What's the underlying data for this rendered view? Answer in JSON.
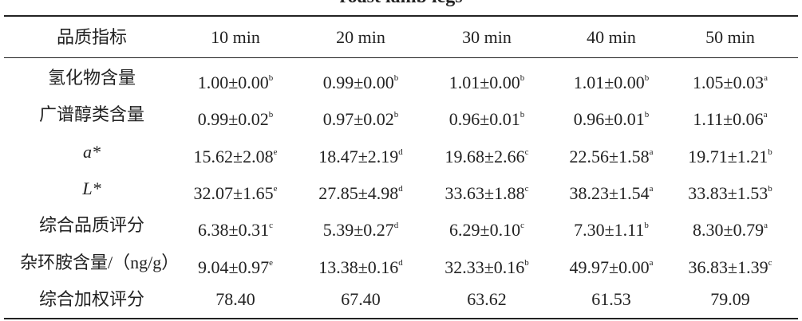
{
  "header": {
    "title": "roast lamb legs"
  },
  "table": {
    "columns": [
      "品质指标",
      "10 min",
      "20 min",
      "30 min",
      "40 min",
      "50 min"
    ],
    "rows": [
      [
        "氢化物含量",
        {
          "value": "1.00±0.00",
          "sup": "b"
        },
        {
          "value": "0.99±0.00",
          "sup": "b"
        },
        {
          "value": "1.01±0.00",
          "sup": "b"
        },
        {
          "value": "1.01±0.00",
          "sup": "b"
        },
        {
          "value": "1.05±0.03",
          "sup": "a"
        }
      ],
      [
        "广谱醇类含量",
        {
          "value": "0.99±0.02",
          "sup": "b"
        },
        {
          "value": "0.97±0.02",
          "sup": "b"
        },
        {
          "value": "0.96±0.01",
          "sup": "b"
        },
        {
          "value": "0.96±0.01",
          "sup": "b"
        },
        {
          "value": "1.11±0.06",
          "sup": "a"
        }
      ],
      [
        "a*",
        {
          "value": "15.62±2.08",
          "sup": "e"
        },
        {
          "value": "18.47±2.19",
          "sup": "d"
        },
        {
          "value": "19.68±2.66",
          "sup": "c"
        },
        {
          "value": "22.56±1.58",
          "sup": "a"
        },
        {
          "value": "19.71±1.21",
          "sup": "b"
        }
      ],
      [
        "L*",
        {
          "value": "32.07±1.65",
          "sup": "e"
        },
        {
          "value": "27.85±4.98",
          "sup": "d"
        },
        {
          "value": "33.63±1.88",
          "sup": "c"
        },
        {
          "value": "38.23±1.54",
          "sup": "a"
        },
        {
          "value": "33.83±1.53",
          "sup": "b"
        }
      ],
      [
        "综合品质评分",
        {
          "value": "6.38±0.31",
          "sup": "c"
        },
        {
          "value": "5.39±0.27",
          "sup": "d"
        },
        {
          "value": "6.29±0.10",
          "sup": "c"
        },
        {
          "value": "7.30±1.11",
          "sup": "b"
        },
        {
          "value": "8.30±0.79",
          "sup": "a"
        }
      ],
      [
        "杂环胺含量/（ng/g）",
        {
          "value": "9.04±0.97",
          "sup": "e"
        },
        {
          "value": "13.38±0.16",
          "sup": "d"
        },
        {
          "value": "32.33±0.16",
          "sup": "b"
        },
        {
          "value": "49.97±0.00",
          "sup": "a"
        },
        {
          "value": "36.83±1.39",
          "sup": "c"
        }
      ],
      [
        "综合加权评分",
        "78.40",
        "67.40",
        "63.62",
        "61.53",
        "79.09"
      ]
    ]
  }
}
